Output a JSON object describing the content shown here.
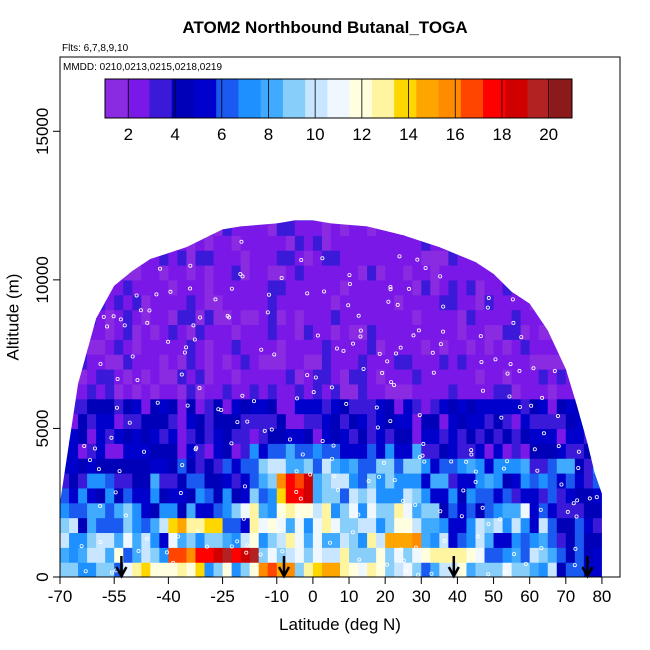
{
  "chart_data": {
    "type": "heatmap",
    "title": "ATOM2 Northbound Butanal_TOGA",
    "subtitle_flights": "Flts: 6,7,8,9,10",
    "subtitle_dates": "MMDD: 0210,0213,0215,0218,0219",
    "xlabel": "Latitude (deg N)",
    "ylabel": "Altitude (m)",
    "xlim": [
      -70,
      85
    ],
    "ylim": [
      0,
      17500
    ],
    "x_ticks": [
      -70,
      -55,
      -40,
      -25,
      -10,
      0,
      10,
      20,
      30,
      40,
      50,
      60,
      70,
      80
    ],
    "x_tick_labels": [
      "-70",
      "-55",
      "-40",
      "-25",
      "-10",
      "0",
      "10",
      "20",
      "30",
      "40",
      "50",
      "60",
      "70",
      "80"
    ],
    "y_ticks": [
      0,
      5000,
      10000,
      15000
    ],
    "y_tick_labels": [
      "0",
      "5000",
      "10000",
      "15000"
    ],
    "colorbar": {
      "ticks": [
        2,
        4,
        6,
        8,
        10,
        12,
        14,
        16,
        18,
        20
      ],
      "tick_labels": [
        "2",
        "4",
        "6",
        "8",
        "10",
        "12",
        "14",
        "16",
        "18",
        "20"
      ],
      "range": [
        1,
        21
      ]
    },
    "colormap": [
      "#8A2BE2",
      "#7A18E8",
      "#3A1AD8",
      "#0000B8",
      "#0000CD",
      "#1A5AF0",
      "#1E90FF",
      "#40AAFF",
      "#87CEFA",
      "#C8E6FF",
      "#F0F8FF",
      "#FFFFE0",
      "#FFF5A0",
      "#FFD700",
      "#FFA500",
      "#FF8C00",
      "#FF4500",
      "#FF0000",
      "#D00000",
      "#B22222",
      "#8B1A1A"
    ],
    "envelope": [
      [
        -70,
        2500
      ],
      [
        -65,
        6500
      ],
      [
        -60,
        8700
      ],
      [
        -55,
        9800
      ],
      [
        -50,
        10300
      ],
      [
        -45,
        10700
      ],
      [
        -40,
        10900
      ],
      [
        -35,
        11100
      ],
      [
        -30,
        11400
      ],
      [
        -25,
        11700
      ],
      [
        -20,
        11800
      ],
      [
        -10,
        11900
      ],
      [
        -5,
        12000
      ],
      [
        0,
        12000
      ],
      [
        5,
        11900
      ],
      [
        15,
        11800
      ],
      [
        25,
        11500
      ],
      [
        35,
        11100
      ],
      [
        45,
        10600
      ],
      [
        50,
        10200
      ],
      [
        55,
        9600
      ],
      [
        60,
        9200
      ],
      [
        65,
        8300
      ],
      [
        70,
        7000
      ],
      [
        73,
        5800
      ],
      [
        76,
        4500
      ],
      [
        78,
        3500
      ],
      [
        80,
        2800
      ],
      [
        80,
        0
      ]
    ],
    "high_bands": [
      {
        "x0": -10,
        "x1": 0,
        "y0": 2200,
        "y1": 3500,
        "value": 15
      },
      {
        "x0": -8,
        "x1": -2,
        "y0": 2500,
        "y1": 3200,
        "value": 18
      },
      {
        "x0": -40,
        "x1": -25,
        "y0": 1400,
        "y1": 2000,
        "value": 14
      },
      {
        "x0": -40,
        "x1": -20,
        "y0": 500,
        "y1": 1000,
        "value": 17
      },
      {
        "x0": -30,
        "x1": -15,
        "y0": 500,
        "y1": 900,
        "value": 19
      },
      {
        "x0": -15,
        "x1": -5,
        "y0": 0,
        "y1": 500,
        "value": 16
      },
      {
        "x0": -50,
        "x1": -30,
        "y0": 0,
        "y1": 500,
        "value": 13
      },
      {
        "x0": 20,
        "x1": 30,
        "y0": 1000,
        "y1": 1400,
        "value": 15
      },
      {
        "x0": 0,
        "x1": 10,
        "y0": 0,
        "y1": 500,
        "value": 14
      },
      {
        "x0": 30,
        "x1": 45,
        "y0": 500,
        "y1": 1000,
        "value": 13
      }
    ],
    "arrows_x": [
      -53,
      -8,
      39,
      76
    ],
    "legend_position": "top",
    "grid": false
  }
}
